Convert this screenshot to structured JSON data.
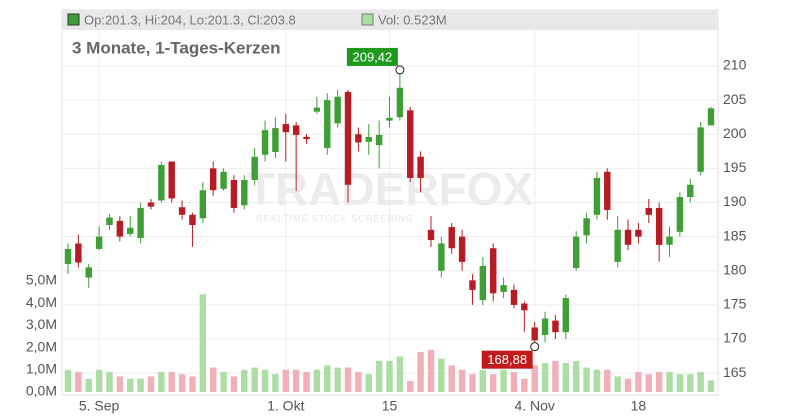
{
  "chart_data": {
    "type": "candlestick",
    "title": "3 Monate, 1-Tages-Kerzen",
    "ohlc_legend": "Op:201.3, Hi:204, Lo:201.3, Cl:203.8",
    "volume_legend": "Vol: 0.523M",
    "watermark": "TRADERFOX",
    "watermark_subtitle": "REALTIME STOCK SCREENING",
    "categories": [
      null,
      null,
      null,
      "5. Sep",
      null,
      null,
      null,
      null,
      null,
      null,
      null,
      null,
      null,
      null,
      null,
      null,
      null,
      null,
      null,
      null,
      null,
      "1. Okt",
      null,
      null,
      null,
      null,
      null,
      null,
      null,
      null,
      null,
      "15",
      null,
      null,
      null,
      null,
      null,
      null,
      null,
      null,
      null,
      null,
      null,
      null,
      null,
      "4. Nov",
      null,
      null,
      null,
      null,
      null,
      null,
      null,
      null,
      null,
      "18",
      null,
      null,
      null,
      null,
      null,
      null,
      null
    ],
    "open": [
      181,
      184,
      179,
      183.2,
      186.7,
      187.3,
      185.4,
      184.8,
      190,
      190.3,
      196,
      189.3,
      188.2,
      187.7,
      195,
      192,
      193.3,
      189.6,
      193.3,
      197,
      197.4,
      201.5,
      201.3,
      199.6,
      203.3,
      198,
      201.6,
      206.2,
      200,
      198.9,
      198.4,
      202,
      202.5,
      203.5,
      196.7,
      186,
      180,
      186.4,
      185,
      178.6,
      175.7,
      183.3,
      176.9,
      177.2,
      175.2,
      171.7,
      170.6,
      172.7,
      171,
      180.4,
      185.2,
      188.2,
      194.5,
      181.3,
      186,
      186,
      189.2,
      189.2,
      183.8,
      185.7,
      190.8,
      194.5,
      201.3
    ],
    "high": [
      184,
      185.3,
      181,
      186.5,
      188.3,
      188,
      188,
      190,
      190.5,
      196,
      196,
      190.3,
      188.5,
      193,
      196,
      195,
      194,
      194,
      198,
      202,
      202.5,
      203,
      201.8,
      200,
      205.5,
      206,
      206.5,
      206.5,
      201,
      201.5,
      202,
      205.5,
      209.42,
      204,
      197.5,
      188,
      185,
      187,
      186,
      179.5,
      182,
      184,
      179,
      178,
      175.5,
      172.5,
      174,
      173.5,
      176.5,
      185.8,
      188.5,
      194.5,
      195,
      188,
      187.5,
      187,
      190.5,
      190,
      186.5,
      191.5,
      193.5,
      201.8,
      204
    ],
    "low": [
      179.5,
      180.5,
      177.5,
      183,
      186,
      184.3,
      185,
      184,
      189,
      190,
      190,
      187.5,
      183.5,
      187,
      191,
      191.7,
      188.5,
      189,
      192.5,
      196,
      196.5,
      196,
      191.7,
      198.6,
      203,
      197,
      201,
      190,
      197.5,
      197,
      195,
      201,
      202,
      193,
      191.5,
      183.5,
      179,
      182.5,
      180,
      175,
      175,
      175.5,
      176,
      174.5,
      171,
      168.88,
      169.5,
      170,
      170,
      180,
      184,
      187.5,
      187.5,
      180.5,
      183,
      184,
      187,
      181.3,
      182,
      185,
      190,
      194,
      201.3
    ],
    "close": [
      183.2,
      181.2,
      180.5,
      185,
      187.8,
      185,
      186.3,
      189.2,
      189.4,
      195.5,
      190.6,
      188.2,
      186.7,
      191.8,
      191.8,
      194.5,
      189.2,
      193.3,
      196.7,
      200.6,
      200.9,
      200.3,
      199.9,
      199.3,
      203.9,
      205,
      205.5,
      192.6,
      198.8,
      199.6,
      199.9,
      202.4,
      206.8,
      193.6,
      193.6,
      184.5,
      184,
      183.3,
      181.3,
      177.2,
      180.7,
      176.7,
      177.9,
      175,
      174.2,
      169.8,
      173,
      171,
      176,
      185,
      187.7,
      193.6,
      188.9,
      186,
      183.8,
      185,
      188.2,
      183.8,
      185,
      190.8,
      192.6,
      201,
      203.8
    ],
    "volume": [
      1.0,
      0.9,
      0.6,
      1.0,
      0.9,
      0.7,
      0.6,
      0.6,
      0.7,
      0.9,
      0.9,
      0.8,
      0.7,
      4.4,
      1.1,
      0.9,
      0.7,
      1.0,
      1.1,
      1.0,
      0.8,
      1.0,
      1.0,
      0.9,
      1.0,
      1.2,
      1.1,
      1.1,
      0.9,
      0.8,
      1.4,
      1.4,
      1.6,
      0.5,
      1.8,
      1.9,
      1.5,
      1.2,
      1.0,
      0.8,
      1.0,
      0.8,
      1.0,
      0.9,
      0.6,
      1.2,
      1.3,
      1.4,
      1.3,
      1.4,
      1.1,
      1.0,
      1.0,
      0.7,
      0.6,
      0.9,
      0.8,
      0.9,
      0.9,
      0.8,
      0.8,
      0.9,
      0.523
    ],
    "up_color": "#3f9e36",
    "down_color": "#b71c24",
    "volume_up_color": "#abdda5",
    "volume_down_color": "#f1afb8",
    "ylim": [
      161.8,
      218.2
    ],
    "yticks": [
      165,
      170,
      175,
      180,
      185,
      190,
      195,
      200,
      205,
      210
    ],
    "y2lim": [
      -0.135,
      17.2
    ],
    "y2ticks": [
      {
        "value": 0,
        "label": "0,0M"
      },
      {
        "value": 1,
        "label": "1,0M"
      },
      {
        "value": 2,
        "label": "2,0M"
      },
      {
        "value": 3,
        "label": "3,0M"
      },
      {
        "value": 4,
        "label": "4,0M"
      },
      {
        "value": 5,
        "label": "5,0M"
      }
    ],
    "max_label": {
      "value": 209.42,
      "label": "209,42"
    },
    "min_label": {
      "value": 168.88,
      "label": "168,88"
    },
    "grid": true
  }
}
